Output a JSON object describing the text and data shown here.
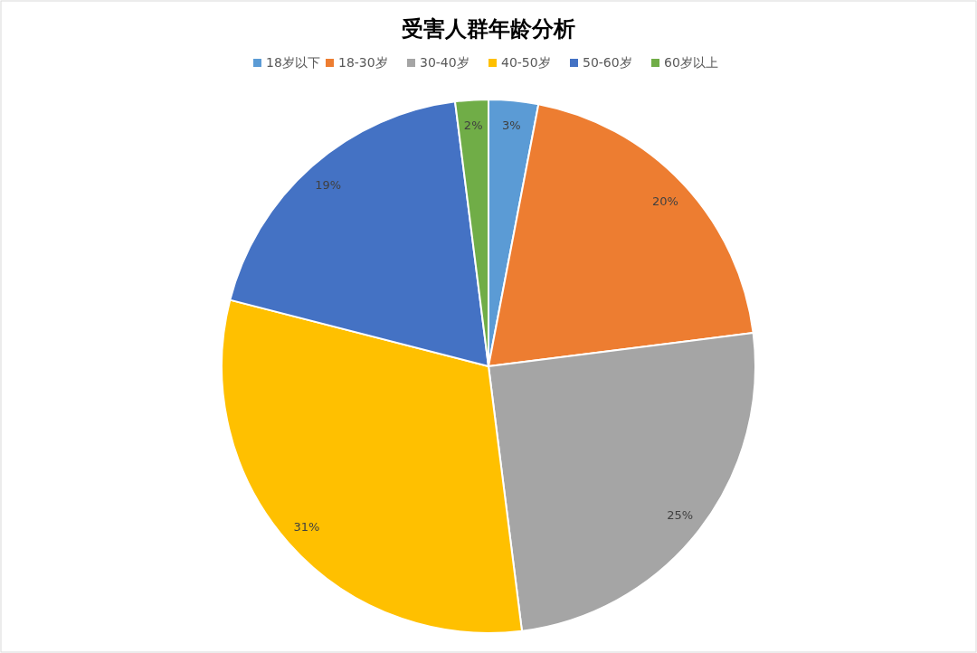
{
  "chart_data": {
    "type": "pie",
    "title": "受害人群年龄分析",
    "categories": [
      "18岁以下",
      "18-30岁",
      "30-40岁",
      "40-50岁",
      "50-60岁",
      "60岁以上"
    ],
    "values": [
      3,
      20,
      25,
      31,
      19,
      2
    ],
    "colors": [
      "#5b9bd5",
      "#ed7d31",
      "#a5a5a5",
      "#ffc000",
      "#4472c4",
      "#70ad47"
    ],
    "value_labels": [
      "3%",
      "20%",
      "25%",
      "31%",
      "19%",
      "2%"
    ],
    "legend": "top"
  }
}
